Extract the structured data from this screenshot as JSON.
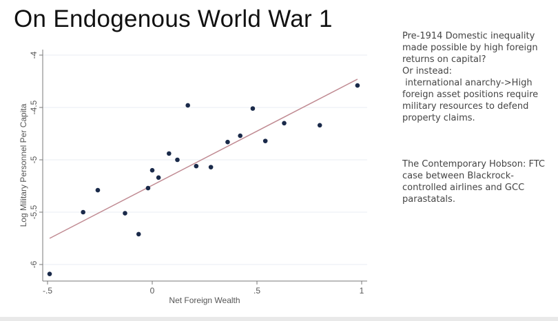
{
  "slide": {
    "title": "On Endogenous World War 1",
    "notes": [
      "Pre-1914 Domestic inequality made possible by high foreign returns on capital?",
      "Or instead:",
      " international anarchy->High foreign asset positions require military resources to defend property claims.",
      "The Contemporary Hobson: FTC case between Blackrock-controlled airlines and GCC parastatals."
    ]
  },
  "chart_data": {
    "type": "scatter",
    "title": "",
    "xlabel": "Net Foreign Wealth",
    "ylabel": "Log Military Personnel Per Capita",
    "xlim": [
      -0.5,
      1
    ],
    "ylim": [
      -6,
      -4
    ],
    "xticks": [
      {
        "v": -0.5,
        "label": "-.5"
      },
      {
        "v": 0,
        "label": "0"
      },
      {
        "v": 0.5,
        "label": ".5"
      },
      {
        "v": 1,
        "label": "1"
      }
    ],
    "yticks": [
      {
        "v": -4,
        "label": "-4"
      },
      {
        "v": -4.5,
        "label": "-4.5"
      },
      {
        "v": -5,
        "label": "-5"
      },
      {
        "v": -5.5,
        "label": "-5.5"
      },
      {
        "v": -6,
        "label": "-6"
      }
    ],
    "grid": true,
    "points": [
      [
        -0.49,
        -6.09
      ],
      [
        -0.33,
        -5.5
      ],
      [
        -0.26,
        -5.29
      ],
      [
        -0.13,
        -5.51
      ],
      [
        -0.065,
        -5.71
      ],
      [
        -0.02,
        -5.27
      ],
      [
        0.0,
        -5.1
      ],
      [
        0.03,
        -5.17
      ],
      [
        0.08,
        -4.94
      ],
      [
        0.12,
        -5.0
      ],
      [
        0.17,
        -4.48
      ],
      [
        0.21,
        -5.06
      ],
      [
        0.28,
        -5.07
      ],
      [
        0.36,
        -4.83
      ],
      [
        0.42,
        -4.77
      ],
      [
        0.48,
        -4.51
      ],
      [
        0.54,
        -4.82
      ],
      [
        0.63,
        -4.65
      ],
      [
        0.8,
        -4.67
      ],
      [
        0.98,
        -4.29
      ]
    ],
    "fit_line": [
      [
        -0.49,
        -5.75
      ],
      [
        0.98,
        -4.23
      ]
    ],
    "colors": {
      "point": "#1a2a4a",
      "fit": "#c08a92",
      "grid": "#eaeef3",
      "axis": "#777777"
    }
  }
}
